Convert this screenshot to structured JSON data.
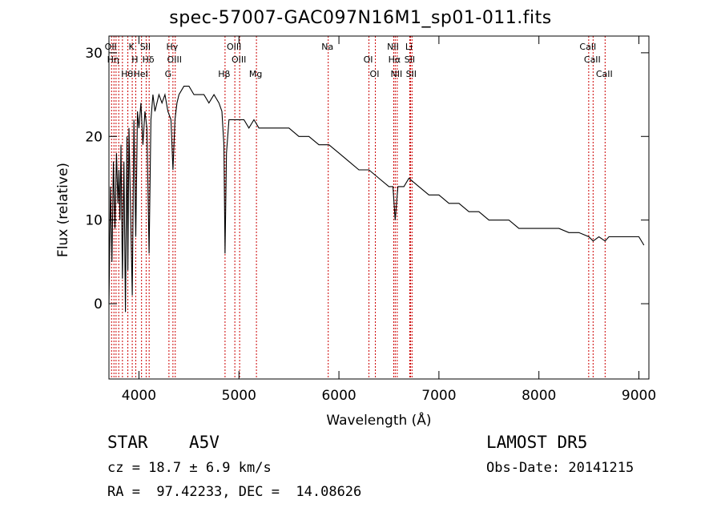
{
  "chart_data": {
    "type": "line",
    "title": "spec-57007-GAC097N16M1_sp01-011.fits",
    "xlabel": "Wavelength (Å)",
    "ylabel": "Flux (relative)",
    "xlim": [
      3700,
      9100
    ],
    "ylim": [
      -9,
      32
    ],
    "xticks": [
      4000,
      5000,
      6000,
      7000,
      8000,
      9000
    ],
    "yticks": [
      0,
      10,
      20,
      30
    ],
    "grid": false,
    "series_color": "#000000",
    "line_color": "#cc0000",
    "series": [
      {
        "x": [
          3700,
          3715,
          3730,
          3745,
          3760,
          3775,
          3790,
          3800,
          3810,
          3820,
          3835,
          3850,
          3865,
          3880,
          3889,
          3900,
          3915,
          3933,
          3950,
          3968,
          3985,
          4000,
          4020,
          4040,
          4060,
          4080,
          4101,
          4120,
          4140,
          4160,
          4180,
          4200,
          4230,
          4260,
          4290,
          4320,
          4340,
          4360,
          4380,
          4400,
          4450,
          4500,
          4550,
          4600,
          4650,
          4700,
          4750,
          4800,
          4830,
          4850,
          4861,
          4875,
          4900,
          4950,
          5000,
          5050,
          5100,
          5150,
          5200,
          5300,
          5400,
          5500,
          5600,
          5700,
          5800,
          5900,
          6000,
          6100,
          6200,
          6300,
          6400,
          6500,
          6540,
          6563,
          6590,
          6650,
          6700,
          6800,
          6900,
          7000,
          7100,
          7200,
          7300,
          7400,
          7500,
          7600,
          7700,
          7800,
          7900,
          8000,
          8100,
          8200,
          8300,
          8400,
          8500,
          8542,
          8600,
          8662,
          8700,
          8800,
          8900,
          9000,
          9050
        ],
        "y": [
          0,
          14,
          5,
          17,
          9,
          18,
          12,
          16,
          10,
          19,
          3,
          17,
          -1,
          20,
          4,
          21,
          12,
          1,
          22,
          8,
          23,
          21,
          24,
          19,
          23,
          21,
          6,
          22,
          25,
          23,
          24,
          25,
          24,
          25,
          23,
          22,
          16,
          22,
          24,
          25,
          26,
          26,
          25,
          25,
          25,
          24,
          25,
          24,
          23,
          19,
          6,
          18,
          22,
          22,
          22,
          22,
          21,
          22,
          21,
          21,
          21,
          21,
          20,
          20,
          19,
          19,
          18,
          17,
          16,
          16,
          15,
          14,
          14,
          10,
          14,
          14,
          15,
          14,
          13,
          13,
          12,
          12,
          11,
          11,
          10,
          10,
          10,
          9,
          9,
          9,
          9,
          9,
          8.5,
          8.5,
          8,
          7.5,
          8,
          7.5,
          8,
          8,
          8,
          8,
          7
        ]
      }
    ],
    "lines": [
      {
        "x": 3726,
        "label": "OII"
      },
      {
        "x": 3750,
        "label": "Hη"
      },
      {
        "x": 3771,
        "label": ""
      },
      {
        "x": 3798,
        "label": ""
      },
      {
        "x": 3835,
        "label": ""
      },
      {
        "x": 3889,
        "label": "Hθ"
      },
      {
        "x": 3933,
        "label": "K"
      },
      {
        "x": 3968,
        "label": "H"
      },
      {
        "x": 4026,
        "label": "HeI"
      },
      {
        "x": 4072,
        "label": "SII"
      },
      {
        "x": 4102,
        "label": "Hδ"
      },
      {
        "x": 4300,
        "label": "G"
      },
      {
        "x": 4340,
        "label": "Hγ"
      },
      {
        "x": 4363,
        "label": "OIII"
      },
      {
        "x": 4861,
        "label": "Hβ"
      },
      {
        "x": 4959,
        "label": "OIII"
      },
      {
        "x": 5007,
        "label": "OIII"
      },
      {
        "x": 5175,
        "label": "Mg"
      },
      {
        "x": 5893,
        "label": "Na"
      },
      {
        "x": 6300,
        "label": "OI"
      },
      {
        "x": 6364,
        "label": "OI"
      },
      {
        "x": 6548,
        "label": "NII"
      },
      {
        "x": 6563,
        "label": "Hα"
      },
      {
        "x": 6583,
        "label": "NII"
      },
      {
        "x": 6708,
        "label": "Li"
      },
      {
        "x": 6716,
        "label": "SII"
      },
      {
        "x": 6731,
        "label": "SII"
      },
      {
        "x": 8498,
        "label": "CaII"
      },
      {
        "x": 8542,
        "label": "CaII"
      },
      {
        "x": 8662,
        "label": "CaII"
      }
    ]
  },
  "footer": {
    "object_class": "STAR",
    "subclass": "A5V",
    "survey": "LAMOST DR5",
    "redshift": "cz = 18.7 ± 6.9 km/s",
    "obs_date": "Obs-Date: 20141215",
    "coords": "RA =  97.42233, DEC =  14.08626"
  }
}
